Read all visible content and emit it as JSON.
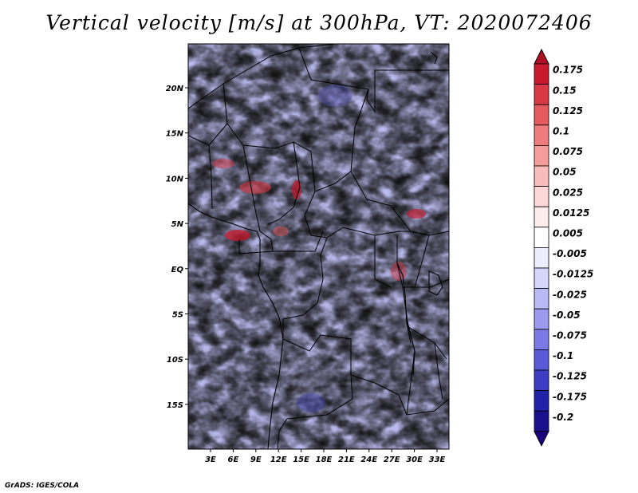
{
  "title": "Vertical velocity [m/s] at 300hPa, VT: 2020072406",
  "footer": "GrADS: IGES/COLA",
  "map": {
    "lat_ticks": [
      "20N",
      "15N",
      "10N",
      "5N",
      "EQ",
      "5S",
      "10S",
      "15S"
    ],
    "lon_ticks": [
      "3E",
      "6E",
      "9E",
      "12E",
      "15E",
      "18E",
      "21E",
      "24E",
      "27E",
      "30E",
      "33E"
    ],
    "lon_range": [
      0,
      35
    ],
    "lat_range": [
      -20,
      24
    ]
  },
  "colorbar": {
    "labels": [
      "0.175",
      "0.15",
      "0.125",
      "0.1",
      "0.075",
      "0.05",
      "0.025",
      "0.0125",
      "0.005",
      "-0.005",
      "-0.0125",
      "-0.025",
      "-0.05",
      "-0.075",
      "-0.1",
      "-0.125",
      "-0.175",
      "-0.2"
    ],
    "colors": [
      "#c8192d",
      "#d93845",
      "#e55a5e",
      "#ee7c7c",
      "#f59c9c",
      "#f9bcbc",
      "#fcd8d8",
      "#feecec",
      "#ffffff",
      "#ececfd",
      "#d6d6fa",
      "#b9b9f5",
      "#9a9aef",
      "#7a7ae6",
      "#5a5ad9",
      "#3c3cc4",
      "#2222a8",
      "#1a0f8c"
    ],
    "top_color": "#b01025",
    "bottom_color": "#1a0080"
  }
}
